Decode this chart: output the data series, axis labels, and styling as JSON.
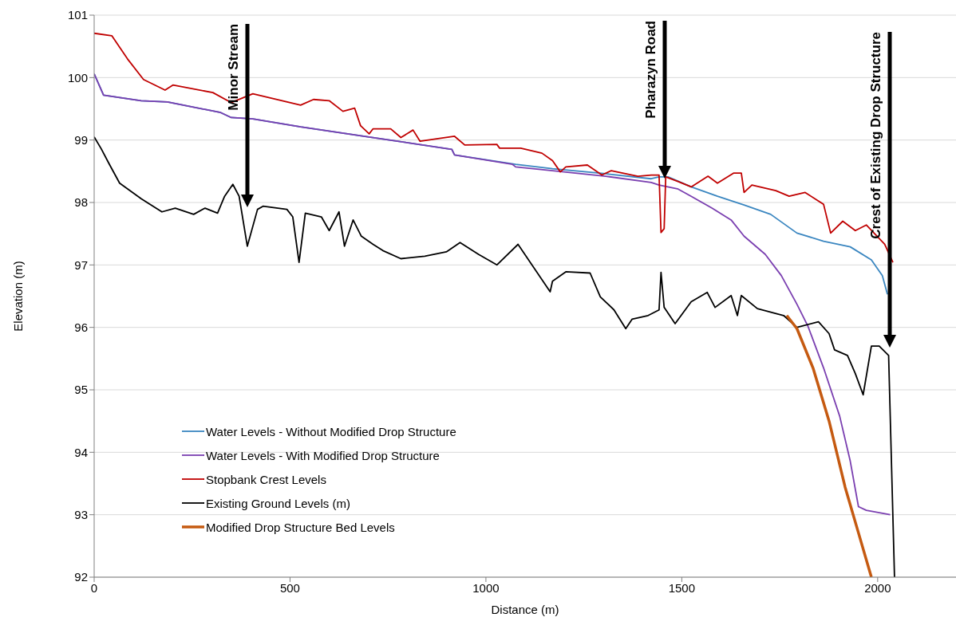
{
  "chart_data": {
    "type": "line",
    "xlabel": "Distance (m)",
    "ylabel": "Elevation (m)",
    "xlim": [
      0,
      2200
    ],
    "xticks": [
      0,
      500,
      1000,
      1500,
      2000
    ],
    "ylim": [
      92,
      101
    ],
    "yticks": [
      92,
      93,
      94,
      95,
      96,
      97,
      98,
      99,
      100,
      101
    ],
    "grid": "y",
    "legend": "bottom left",
    "marker": "none",
    "line_style": "solid",
    "annotations": [
      "Minor Stream",
      "Pharazyn Road",
      "Crest of Existing Drop Structure"
    ],
    "series": [
      {
        "name": "Water Levels - Without Modified Drop Structure",
        "color": "#3a86c0",
        "x": [
          0,
          24,
          120,
          187,
          323,
          350,
          405,
          527,
          712,
          913,
          920,
          1076,
          1170,
          1306,
          1422,
          1442,
          1465,
          1524,
          1591,
          1659,
          1727,
          1794,
          1862,
          1930,
          1984,
          2012,
          2025
        ],
        "values": [
          100.06,
          99.72,
          99.63,
          99.61,
          99.44,
          99.36,
          99.34,
          99.21,
          99.04,
          98.85,
          98.76,
          98.61,
          98.54,
          98.46,
          98.38,
          98.41,
          98.41,
          98.25,
          98.1,
          97.96,
          97.81,
          97.51,
          97.38,
          97.29,
          97.08,
          96.83,
          96.53
        ]
      },
      {
        "name": "Water Levels - With Modified Drop Structure",
        "color": "#7a3fb0",
        "x": [
          0,
          24,
          120,
          187,
          323,
          350,
          405,
          527,
          712,
          913,
          920,
          1068,
          1076,
          1170,
          1306,
          1422,
          1442,
          1489,
          1524,
          1577,
          1626,
          1659,
          1713,
          1754,
          1794,
          1822,
          1862,
          1903,
          1930,
          1951,
          1971,
          2032
        ],
        "values": [
          100.06,
          99.72,
          99.63,
          99.61,
          99.44,
          99.36,
          99.34,
          99.21,
          99.04,
          98.85,
          98.76,
          98.61,
          98.57,
          98.51,
          98.42,
          98.32,
          98.28,
          98.22,
          98.1,
          97.91,
          97.72,
          97.46,
          97.17,
          96.83,
          96.37,
          96.02,
          95.35,
          94.58,
          93.86,
          93.13,
          93.07,
          93.0
        ]
      },
      {
        "name": "Stopbank Crest Levels",
        "color": "#c00000",
        "x": [
          0,
          45,
          85,
          126,
          181,
          201,
          303,
          350,
          405,
          527,
          560,
          600,
          635,
          665,
          680,
          702,
          712,
          757,
          783,
          814,
          832,
          920,
          946,
          1028,
          1035,
          1089,
          1143,
          1170,
          1190,
          1204,
          1259,
          1296,
          1320,
          1388,
          1422,
          1442,
          1447,
          1455,
          1459,
          1489,
          1524,
          1567,
          1591,
          1632,
          1652,
          1659,
          1679,
          1740,
          1774,
          1815,
          1862,
          1880,
          1911,
          1943,
          1971,
          2018,
          2039
        ],
        "values": [
          100.71,
          100.67,
          100.3,
          99.97,
          99.8,
          99.88,
          99.76,
          99.6,
          99.74,
          99.56,
          99.65,
          99.63,
          99.46,
          99.51,
          99.23,
          99.1,
          99.18,
          99.18,
          99.04,
          99.16,
          98.98,
          99.06,
          98.92,
          98.93,
          98.87,
          98.87,
          98.79,
          98.67,
          98.49,
          98.57,
          98.6,
          98.44,
          98.51,
          98.42,
          98.44,
          98.44,
          97.52,
          97.58,
          98.41,
          98.34,
          98.25,
          98.42,
          98.31,
          98.47,
          98.47,
          98.16,
          98.28,
          98.19,
          98.1,
          98.16,
          97.97,
          97.51,
          97.7,
          97.55,
          97.64,
          97.33,
          97.04
        ]
      },
      {
        "name": "Existing Ground Levels (m)",
        "color": "#000000",
        "x": [
          0,
          18,
          39,
          65,
          120,
          173,
          207,
          254,
          283,
          315,
          333,
          354,
          370,
          391,
          417,
          431,
          492,
          507,
          523,
          539,
          580,
          600,
          625,
          639,
          661,
          682,
          712,
          737,
          783,
          844,
          899,
          934,
          981,
          1028,
          1082,
          1123,
          1164,
          1170,
          1204,
          1266,
          1292,
          1327,
          1357,
          1373,
          1414,
          1442,
          1447,
          1455,
          1483,
          1524,
          1565,
          1585,
          1626,
          1642,
          1652,
          1693,
          1760,
          1794,
          1849,
          1876,
          1890,
          1923,
          1943,
          1963,
          1984,
          2004,
          2028,
          2043
        ],
        "values": [
          99.05,
          98.86,
          98.61,
          98.31,
          98.06,
          97.85,
          97.91,
          97.81,
          97.91,
          97.83,
          98.1,
          98.29,
          98.1,
          97.3,
          97.89,
          97.94,
          97.89,
          97.77,
          97.04,
          97.83,
          97.77,
          97.55,
          97.85,
          97.3,
          97.72,
          97.46,
          97.33,
          97.23,
          97.1,
          97.14,
          97.21,
          97.36,
          97.17,
          97.0,
          97.33,
          96.95,
          96.57,
          96.74,
          96.89,
          96.87,
          96.49,
          96.28,
          95.98,
          96.13,
          96.19,
          96.28,
          96.88,
          96.32,
          96.06,
          96.41,
          96.56,
          96.32,
          96.51,
          96.19,
          96.51,
          96.3,
          96.19,
          96.0,
          96.09,
          95.9,
          95.64,
          95.55,
          95.26,
          94.92,
          95.7,
          95.7,
          95.55,
          92.0
        ]
      },
      {
        "name": "Modified Drop Structure Bed Levels",
        "color": "#c55a11",
        "x": [
          1768,
          1794,
          1835,
          1876,
          1917,
          1951,
          1984
        ],
        "values": [
          96.19,
          95.98,
          95.35,
          94.5,
          93.44,
          92.71,
          92.0
        ]
      }
    ]
  }
}
